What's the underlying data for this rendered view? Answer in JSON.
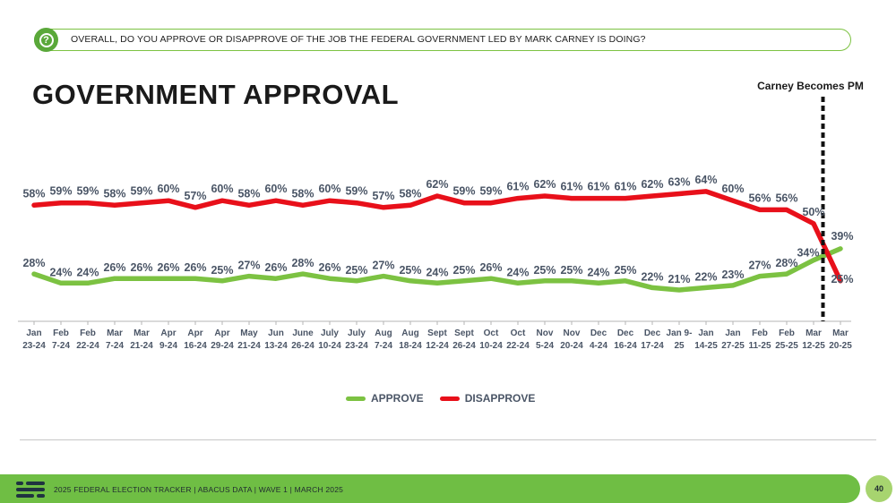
{
  "question": "OVERALL, DO YOU APPROVE OR DISAPPROVE OF THE JOB THE FEDERAL GOVERNMENT LED BY MARK CARNEY IS DOING?",
  "title": "GOVERNMENT APPROVAL",
  "annotation": "Carney Becomes PM",
  "legend": {
    "approve": "APPROVE",
    "disapprove": "DISAPPROVE"
  },
  "colors": {
    "approve": "#7cc242",
    "disapprove": "#e8101a",
    "text": "#4a5566"
  },
  "footer": {
    "text": "2025 FEDERAL ELECTION TRACKER  |  ABACUS DATA  |  WAVE 1  |  MARCH 2025",
    "page": "40"
  },
  "chart_data": {
    "type": "line",
    "categories": [
      [
        "Jan",
        "23-24"
      ],
      [
        "Feb",
        "7-24"
      ],
      [
        "Feb",
        "22-24"
      ],
      [
        "Mar",
        "7-24"
      ],
      [
        "Mar",
        "21-24"
      ],
      [
        "Apr",
        "9-24"
      ],
      [
        "Apr",
        "16-24"
      ],
      [
        "Apr",
        "29-24"
      ],
      [
        "May",
        "21-24"
      ],
      [
        "Jun",
        "13-24"
      ],
      [
        "June",
        "26-24"
      ],
      [
        "July",
        "10-24"
      ],
      [
        "July",
        "23-24"
      ],
      [
        "Aug",
        "7-24"
      ],
      [
        "Aug",
        "18-24"
      ],
      [
        "Sept",
        "12-24"
      ],
      [
        "Sept",
        "26-24"
      ],
      [
        "Oct",
        "10-24"
      ],
      [
        "Oct",
        "22-24"
      ],
      [
        "Nov",
        "5-24"
      ],
      [
        "Nov",
        "20-24"
      ],
      [
        "Dec",
        "4-24"
      ],
      [
        "Dec",
        "16-24"
      ],
      [
        "Dec",
        "17-24"
      ],
      [
        "Jan 9-",
        "25"
      ],
      [
        "Jan",
        "14-25"
      ],
      [
        "Jan",
        "27-25"
      ],
      [
        "Feb",
        "11-25"
      ],
      [
        "Feb",
        "25-25"
      ],
      [
        "Mar",
        "12-25"
      ],
      [
        "Mar",
        "20-25"
      ]
    ],
    "series": [
      {
        "name": "APPROVE",
        "values": [
          28,
          24,
          24,
          26,
          26,
          26,
          26,
          25,
          27,
          26,
          28,
          26,
          25,
          27,
          25,
          24,
          25,
          26,
          24,
          25,
          25,
          24,
          25,
          22,
          21,
          22,
          23,
          27,
          28,
          34,
          39
        ]
      },
      {
        "name": "DISAPPROVE",
        "values": [
          58,
          59,
          59,
          58,
          59,
          60,
          57,
          60,
          58,
          60,
          58,
          60,
          59,
          57,
          58,
          62,
          59,
          59,
          61,
          62,
          61,
          61,
          61,
          62,
          63,
          64,
          60,
          56,
          56,
          50,
          25
        ]
      }
    ],
    "data_labels": {
      "APPROVE": [
        "28%",
        "24%",
        "24%",
        "26%",
        "26%",
        "26%",
        "26%",
        "25%",
        "27%",
        "26%",
        "28%",
        "26%",
        "25%",
        "27%",
        "25%",
        "24%",
        "25%",
        "26%",
        "24%",
        "25%",
        "25%",
        "24%",
        "25%",
        "22%",
        "21%",
        "22%",
        "23%",
        "27%",
        "28%",
        "34%",
        "39%"
      ],
      "DISAPPROVE": [
        "58%",
        "59%",
        "59%",
        "58%",
        "59%",
        "60%",
        "57%",
        "60%",
        "58%",
        "60%",
        "58%",
        "60%",
        "59%",
        "57%",
        "58%",
        "62%",
        "59%",
        "59%",
        "61%",
        "62%",
        "61%",
        "61%",
        "61%",
        "62%",
        "63%",
        "64%",
        "60%",
        "56%",
        "56%",
        "50%",
        "25%"
      ]
    },
    "annotation_after_index": 29
  }
}
